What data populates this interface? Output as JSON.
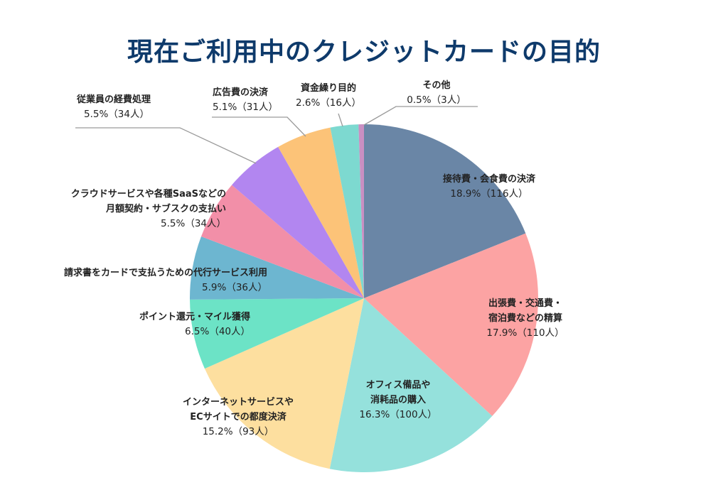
{
  "title": "現在ご利用中のクレジットカードの目的",
  "chart_data": {
    "type": "pie",
    "title": "現在ご利用中のクレジットカードの目的",
    "start_angle": "12 o'clock, clockwise",
    "categories": [
      "接待費・会食費の決済",
      "出張費・交通費・宿泊費などの精算",
      "オフィス備品や消耗品の購入",
      "インターネットサービスやECサイトでの都度決済",
      "ポイント還元・マイル獲得",
      "請求書をカードで支払うための代行サービス利用",
      "クラウドサービスや各種SaaSなどの月額契約・サブスクの支払い",
      "従業員の経費処理",
      "広告費の決済",
      "資金繰り目的",
      "その他"
    ],
    "values": [
      18.9,
      17.9,
      16.3,
      15.2,
      6.5,
      5.9,
      5.5,
      5.5,
      5.1,
      2.6,
      0.5
    ],
    "counts": [
      116,
      110,
      100,
      93,
      40,
      36,
      34,
      34,
      31,
      16,
      3
    ],
    "colors": [
      "#6a86a6",
      "#fca3a3",
      "#95e1dc",
      "#fddf9f",
      "#6ce3c6",
      "#6db6d0",
      "#f28fa8",
      "#b286f0",
      "#fcc378",
      "#7dd9d0",
      "#c98fc2"
    ],
    "unit": "%",
    "legend": "none (direct labels)"
  },
  "labels": [
    {
      "line1": "接待費・会食費の決済",
      "line2": "",
      "value": "18.9%（116人）"
    },
    {
      "line1": "出張費・交通費・",
      "line2": "宿泊費などの精算",
      "value": "17.9%（110人）"
    },
    {
      "line1": "オフィス備品や",
      "line2": "消耗品の購入",
      "value": "16.3%（100人）"
    },
    {
      "line1": "インターネットサービスや",
      "line2": "ECサイトでの都度決済",
      "value": "15.2%（93人）"
    },
    {
      "line1": "ポイント還元・マイル獲得",
      "line2": "",
      "value": "6.5%（40人）"
    },
    {
      "line1": "請求書をカードで支払うための代行サービス利用",
      "line2": "",
      "value": "5.9%（36人）"
    },
    {
      "line1": "クラウドサービスや各種SaaSなどの",
      "line2": "月額契約・サブスクの支払い",
      "value": "5.5%（34人）"
    },
    {
      "line1": "従業員の経費処理",
      "line2": "",
      "value": "5.5%（34人）"
    },
    {
      "line1": "広告費の決済",
      "line2": "",
      "value": "5.1%（31人）"
    },
    {
      "line1": "資金繰り目的",
      "line2": "",
      "value": "2.6%（16人）"
    },
    {
      "line1": "その他",
      "line2": "",
      "value": "0.5%（3人）"
    }
  ]
}
